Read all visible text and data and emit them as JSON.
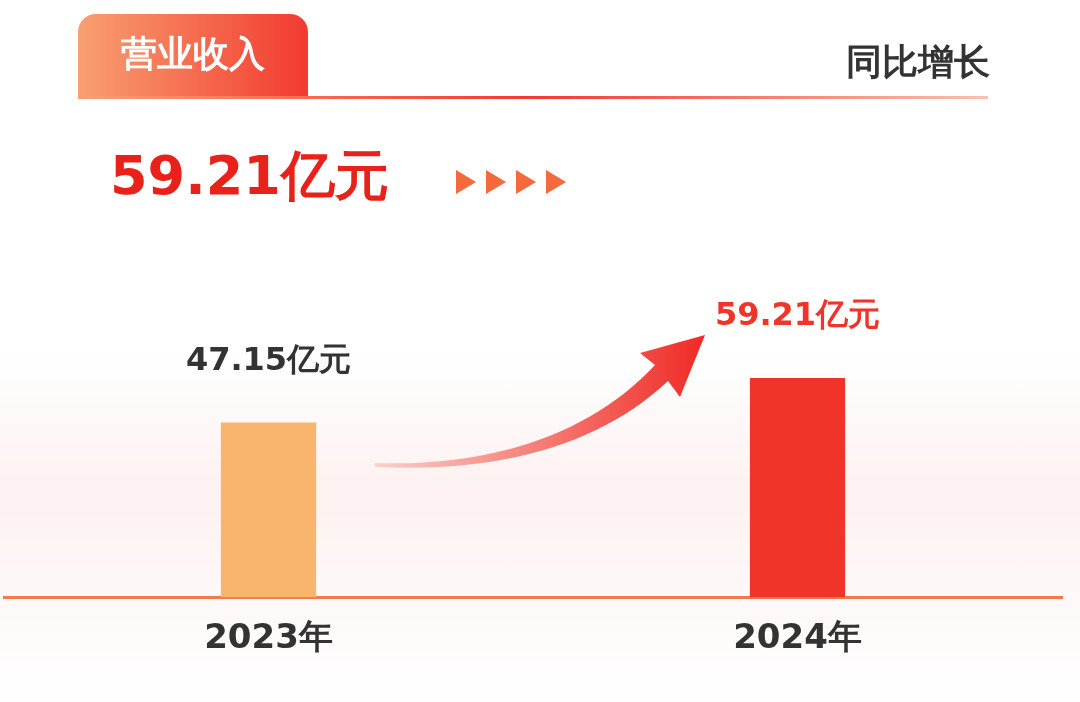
{
  "chart_data": {
    "type": "bar",
    "title": "营业收入",
    "subtitle": "同比增长",
    "annotations": [
      "59.21亿元"
    ],
    "categories": [
      "2023年",
      "2024年"
    ],
    "values": [
      47.15,
      59.21
    ],
    "colors": [
      "#f9b46e",
      "#f0342a"
    ],
    "value_labels": [
      "47.15亿元",
      "59.21亿元"
    ],
    "grid": false,
    "legend": false
  }
}
